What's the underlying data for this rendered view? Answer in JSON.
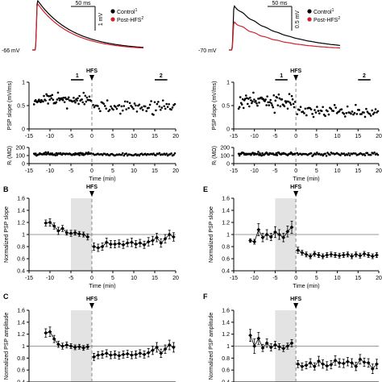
{
  "colors": {
    "control": "#000000",
    "post_hfs": "#d0202a",
    "shade": "#e3e3e3",
    "dash": "#888888"
  },
  "panel_letters": {
    "b": "B",
    "c": "C",
    "e": "E",
    "f": "F"
  },
  "traces": {
    "left": {
      "vm_label": "-66 mV",
      "scale_time": "50 ms",
      "scale_volt": "1 mV",
      "legend": [
        "Control",
        "Post-HFS"
      ],
      "legend_sup": [
        "1",
        "2"
      ]
    },
    "right": {
      "vm_label": "-70 mV",
      "scale_time": "50 ms",
      "scale_volt": "0.5 mV",
      "legend": [
        "Control",
        "Post-HFS"
      ],
      "legend_sup": [
        "1",
        "2"
      ]
    }
  },
  "labels": {
    "hfs": "HFS",
    "epoch1": "1",
    "epoch2": "2",
    "time_axis": "Time (min)"
  },
  "chart_data": [
    {
      "id": "left-slope",
      "type": "scatter",
      "ylabel": "PSP slope (mV/ms)",
      "xlim": [
        -15,
        20
      ],
      "ylim": [
        0,
        1
      ],
      "xticks": [
        -15,
        -10,
        -5,
        0,
        5,
        10,
        15,
        20
      ],
      "yticks": [
        0,
        0.5,
        1
      ],
      "hfs_time": 0,
      "epochs": [
        {
          "label": "1",
          "x": [
            -5,
            -2
          ]
        },
        {
          "label": "2",
          "x": [
            15,
            18
          ]
        }
      ],
      "pre": {
        "x_range": [
          -13.8,
          -0.2
        ],
        "mean": 0.62,
        "sd": 0.09
      },
      "post": {
        "x_range": [
          0.3,
          19.8
        ],
        "mean": 0.47,
        "sd": 0.09
      }
    },
    {
      "id": "left-ri",
      "type": "scatter",
      "ylabel": "Rᵢ (MΩ)",
      "xlim": [
        -15,
        20
      ],
      "ylim": [
        0,
        200
      ],
      "xticks": [
        -15,
        -10,
        -5,
        0,
        5,
        10,
        15,
        20
      ],
      "yticks": [
        0,
        100,
        200
      ],
      "xlabel": "Time (min)",
      "hfs_time": 0,
      "pre": {
        "x_range": [
          -13.8,
          -0.2
        ],
        "mean": 120,
        "sd": 12
      },
      "post": {
        "x_range": [
          0.3,
          19.8
        ],
        "mean": 115,
        "sd": 12
      }
    },
    {
      "id": "right-slope",
      "type": "scatter",
      "ylabel": "PSP slope (mV/ms)",
      "xlim": [
        -15,
        20
      ],
      "ylim": [
        0,
        1
      ],
      "xticks": [
        -15,
        -10,
        -5,
        0,
        5,
        10,
        15,
        20
      ],
      "yticks": [
        0,
        0.5,
        1
      ],
      "hfs_time": 0,
      "epochs": [
        {
          "label": "1",
          "x": [
            -5,
            -2
          ]
        },
        {
          "label": "2",
          "x": [
            15,
            18
          ]
        }
      ],
      "pre": {
        "x_range": [
          -13.8,
          -0.2
        ],
        "mean": 0.58,
        "sd": 0.13
      },
      "post": {
        "x_range": [
          0.3,
          19.8
        ],
        "mean": 0.38,
        "sd": 0.09
      }
    },
    {
      "id": "right-ri",
      "type": "scatter",
      "ylabel": "Rᵢ (MΩ)",
      "xlim": [
        -15,
        20
      ],
      "ylim": [
        0,
        200
      ],
      "xticks": [
        -15,
        -10,
        -5,
        0,
        5,
        10,
        15,
        20
      ],
      "yticks": [
        0,
        100,
        200
      ],
      "xlabel": "Time (min)",
      "hfs_time": 0,
      "pre": {
        "x_range": [
          -13.8,
          -0.2
        ],
        "mean": 120,
        "sd": 14
      },
      "post": {
        "x_range": [
          0.3,
          19.8
        ],
        "mean": 118,
        "sd": 14
      }
    },
    {
      "id": "B",
      "type": "line",
      "ylabel": "Normalized PSP slope",
      "xlabel": "Time (min)",
      "xlim": [
        -15,
        20
      ],
      "ylim": [
        0.4,
        1.6
      ],
      "xticks": [
        -15,
        -10,
        -5,
        0,
        5,
        10,
        15,
        20
      ],
      "yticks": [
        0.4,
        0.6,
        0.8,
        1,
        1.2,
        1.4,
        1.6
      ],
      "shade": [
        -5,
        0
      ],
      "hfs_time": 0,
      "x": [
        -11,
        -10,
        -9,
        -8,
        -7,
        -6,
        -5,
        -4,
        -3,
        -2,
        -1,
        0.5,
        1.5,
        2.5,
        3.5,
        4.5,
        5.5,
        6.5,
        7.5,
        8.5,
        9.5,
        10.5,
        11.5,
        12.5,
        13.5,
        14.5,
        15.5,
        16.5,
        17.5,
        18.5,
        19.5
      ],
      "y": [
        1.19,
        1.2,
        1.14,
        1.06,
        1.1,
        1.03,
        1.02,
        1.03,
        1.01,
        1.0,
        0.96,
        0.8,
        0.78,
        0.8,
        0.87,
        0.84,
        0.84,
        0.85,
        0.83,
        0.86,
        0.87,
        0.84,
        0.86,
        0.83,
        0.88,
        0.9,
        0.95,
        0.86,
        0.93,
        1.0,
        0.96
      ],
      "err": [
        0.05,
        0.06,
        0.05,
        0.06,
        0.05,
        0.04,
        0.05,
        0.04,
        0.04,
        0.04,
        0.05,
        0.06,
        0.06,
        0.06,
        0.07,
        0.06,
        0.06,
        0.06,
        0.06,
        0.06,
        0.07,
        0.06,
        0.06,
        0.06,
        0.07,
        0.07,
        0.07,
        0.07,
        0.07,
        0.07,
        0.07
      ]
    },
    {
      "id": "C",
      "type": "line",
      "ylabel": "Normalized PSP amplitude",
      "xlabel": "Time (min)",
      "xlim": [
        -15,
        20
      ],
      "ylim": [
        0.4,
        1.6
      ],
      "xticks": [
        -15,
        -10,
        -5,
        0,
        5,
        10,
        15,
        20
      ],
      "yticks": [
        0.4,
        0.6,
        0.8,
        1,
        1.2,
        1.4,
        1.6
      ],
      "shade": [
        -5,
        0
      ],
      "hfs_time": 0,
      "x": [
        -11,
        -10,
        -9,
        -8,
        -7,
        -6,
        -5,
        -4,
        -3,
        -2,
        -1,
        0.5,
        1.5,
        2.5,
        3.5,
        4.5,
        5.5,
        6.5,
        7.5,
        8.5,
        9.5,
        10.5,
        11.5,
        12.5,
        13.5,
        14.5,
        15.5,
        16.5,
        17.5,
        18.5,
        19.5
      ],
      "y": [
        1.22,
        1.24,
        1.12,
        1.03,
        1.0,
        1.02,
        1.0,
        0.98,
        0.99,
        0.97,
        0.99,
        0.82,
        0.85,
        0.86,
        0.88,
        0.85,
        0.86,
        0.84,
        0.86,
        0.87,
        0.85,
        0.86,
        0.88,
        0.86,
        0.89,
        0.93,
        0.98,
        0.88,
        0.95,
        1.02,
        0.98
      ],
      "err": [
        0.07,
        0.08,
        0.06,
        0.05,
        0.05,
        0.05,
        0.04,
        0.04,
        0.04,
        0.04,
        0.04,
        0.06,
        0.06,
        0.06,
        0.06,
        0.06,
        0.06,
        0.06,
        0.06,
        0.06,
        0.06,
        0.06,
        0.06,
        0.06,
        0.07,
        0.07,
        0.08,
        0.07,
        0.07,
        0.08,
        0.08
      ]
    },
    {
      "id": "E",
      "type": "line",
      "ylabel": "Normalized PSP slope",
      "xlabel": "Time (min)",
      "xlim": [
        -15,
        20
      ],
      "ylim": [
        0.4,
        1.6
      ],
      "xticks": [
        -15,
        -10,
        -5,
        0,
        5,
        10,
        15,
        20
      ],
      "yticks": [
        0.4,
        0.6,
        0.8,
        1,
        1.2,
        1.4,
        1.6
      ],
      "shade": [
        -5,
        0
      ],
      "hfs_time": 0,
      "x": [
        -11,
        -10,
        -9,
        -8,
        -7,
        -6,
        -5,
        -4,
        -3,
        -2,
        -1,
        0.5,
        1.5,
        2.5,
        3.5,
        4.5,
        5.5,
        6.5,
        7.5,
        8.5,
        9.5,
        10.5,
        11.5,
        12.5,
        13.5,
        14.5,
        15.5,
        16.5,
        17.5,
        18.5,
        19.5
      ],
      "y": [
        0.9,
        0.88,
        1.08,
        0.95,
        1.0,
        0.96,
        1.04,
        1.0,
        0.95,
        1.05,
        1.12,
        0.74,
        0.7,
        0.67,
        0.64,
        0.68,
        0.66,
        0.64,
        0.66,
        0.67,
        0.66,
        0.65,
        0.66,
        0.67,
        0.64,
        0.67,
        0.65,
        0.68,
        0.66,
        0.64,
        0.66
      ],
      "err": [
        0.03,
        0.04,
        0.1,
        0.07,
        0.08,
        0.06,
        0.09,
        0.08,
        0.07,
        0.09,
        0.1,
        0.05,
        0.04,
        0.04,
        0.04,
        0.04,
        0.04,
        0.04,
        0.04,
        0.04,
        0.04,
        0.04,
        0.04,
        0.04,
        0.04,
        0.04,
        0.04,
        0.04,
        0.04,
        0.04,
        0.04
      ]
    },
    {
      "id": "F",
      "type": "line",
      "ylabel": "Normalized PSP amplitude",
      "xlabel": "Time (min)",
      "xlim": [
        -15,
        20
      ],
      "ylim": [
        0.4,
        1.6
      ],
      "xticks": [
        -15,
        -10,
        -5,
        0,
        5,
        10,
        15,
        20
      ],
      "yticks": [
        0.4,
        0.6,
        0.8,
        1,
        1.2,
        1.4,
        1.6
      ],
      "shade": [
        -5,
        0
      ],
      "hfs_time": 0,
      "x": [
        -11,
        -10,
        -9,
        -8,
        -7,
        -6,
        -5,
        -4,
        -3,
        -2,
        -1,
        0.5,
        1.5,
        2.5,
        3.5,
        4.5,
        5.5,
        6.5,
        7.5,
        8.5,
        9.5,
        10.5,
        11.5,
        12.5,
        13.5,
        14.5,
        15.5,
        16.5,
        17.5,
        18.5,
        19.5
      ],
      "y": [
        1.18,
        1.0,
        1.13,
        0.97,
        1.05,
        0.98,
        1.02,
        0.99,
        0.96,
        1.0,
        1.05,
        0.7,
        0.66,
        0.68,
        0.72,
        0.66,
        0.75,
        0.7,
        0.67,
        0.69,
        0.76,
        0.72,
        0.71,
        0.74,
        0.72,
        0.66,
        0.78,
        0.73,
        0.72,
        0.62,
        0.7
      ],
      "err": [
        0.1,
        0.12,
        0.1,
        0.06,
        0.07,
        0.06,
        0.06,
        0.05,
        0.05,
        0.05,
        0.06,
        0.06,
        0.06,
        0.06,
        0.07,
        0.06,
        0.08,
        0.07,
        0.07,
        0.07,
        0.08,
        0.07,
        0.07,
        0.07,
        0.07,
        0.07,
        0.08,
        0.07,
        0.07,
        0.08,
        0.08
      ]
    }
  ]
}
